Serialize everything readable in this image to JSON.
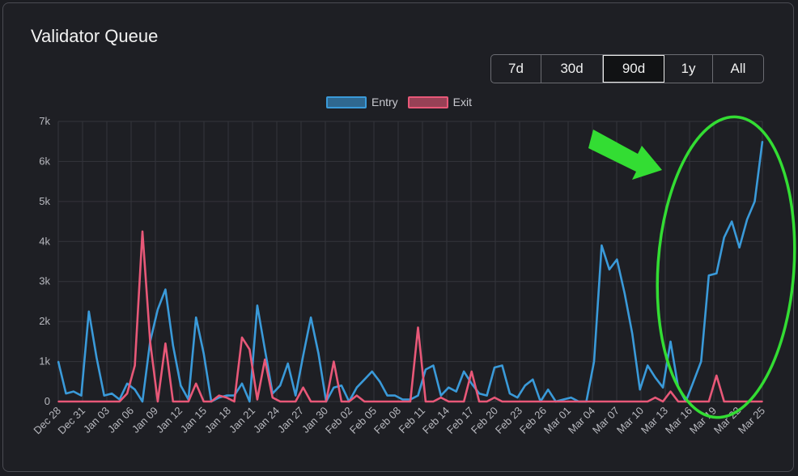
{
  "panel": {
    "title": "Validator Queue"
  },
  "range_buttons": [
    {
      "label": "7d",
      "active": false
    },
    {
      "label": "30d",
      "active": false
    },
    {
      "label": "90d",
      "active": true
    },
    {
      "label": "1y",
      "active": false
    },
    {
      "label": "All",
      "active": false
    }
  ],
  "colors": {
    "entry": "#3a9ad9",
    "exit": "#e85878",
    "annotation": "#33dd33",
    "grid": "#34353b"
  },
  "annotation": {
    "arrow": "green-arrow-icon",
    "ellipse": "green-ellipse"
  },
  "chart_data": {
    "type": "line",
    "title": "",
    "xlabel": "",
    "ylabel": "",
    "ylim": [
      0,
      7000
    ],
    "y_ticks": [
      "0",
      "1k",
      "2k",
      "3k",
      "4k",
      "5k",
      "6k",
      "7k"
    ],
    "x_tick_labels": [
      "Dec 28",
      "Dec 31",
      "Jan 03",
      "Jan 06",
      "Jan 09",
      "Jan 12",
      "Jan 15",
      "Jan 18",
      "Jan 21",
      "Jan 24",
      "Jan 27",
      "Jan 30",
      "Feb 02",
      "Feb 05",
      "Feb 08",
      "Feb 11",
      "Feb 14",
      "Feb 17",
      "Feb 20",
      "Feb 23",
      "Feb 26",
      "Mar 01",
      "Mar 04",
      "Mar 07",
      "Mar 10",
      "Mar 13",
      "Mar 16",
      "Mar 19",
      "Mar 22",
      "Mar 25"
    ],
    "legend": "top-center",
    "grid": true,
    "series": [
      {
        "name": "Entry",
        "values": [
          1000,
          200,
          250,
          150,
          2250,
          1100,
          150,
          200,
          50,
          450,
          300,
          0,
          1500,
          2300,
          2800,
          1400,
          400,
          50,
          2100,
          1200,
          0,
          100,
          150,
          150,
          450,
          0,
          2400,
          1300,
          200,
          400,
          950,
          150,
          1150,
          2100,
          1200,
          0,
          350,
          400,
          0,
          350,
          550,
          750,
          500,
          150,
          150,
          50,
          50,
          150,
          800,
          900,
          150,
          350,
          250,
          750,
          450,
          200,
          150,
          850,
          900,
          200,
          100,
          400,
          550,
          0,
          300,
          0,
          50,
          100,
          0,
          0,
          1000,
          3900,
          3300,
          3550,
          2700,
          1700,
          300,
          900,
          600,
          350,
          1500,
          350,
          0,
          500,
          1000,
          3150,
          3200,
          4100,
          4500,
          3850,
          4550,
          5000,
          6500
        ]
      },
      {
        "name": "Exit",
        "values": [
          0,
          0,
          0,
          0,
          0,
          0,
          0,
          0,
          0,
          200,
          900,
          4250,
          1500,
          0,
          1450,
          0,
          0,
          0,
          450,
          0,
          0,
          150,
          100,
          0,
          1600,
          1300,
          50,
          1050,
          100,
          0,
          0,
          0,
          350,
          0,
          0,
          0,
          1000,
          0,
          0,
          150,
          0,
          0,
          0,
          0,
          0,
          0,
          0,
          1850,
          0,
          0,
          100,
          0,
          0,
          0,
          750,
          0,
          0,
          100,
          0,
          0,
          0,
          0,
          0,
          0,
          0,
          0,
          0,
          0,
          0,
          0,
          0,
          0,
          0,
          0,
          0,
          0,
          0,
          0,
          100,
          0,
          250,
          0,
          0,
          0,
          0,
          0,
          650,
          0,
          0,
          0,
          0,
          0,
          0
        ]
      }
    ]
  }
}
